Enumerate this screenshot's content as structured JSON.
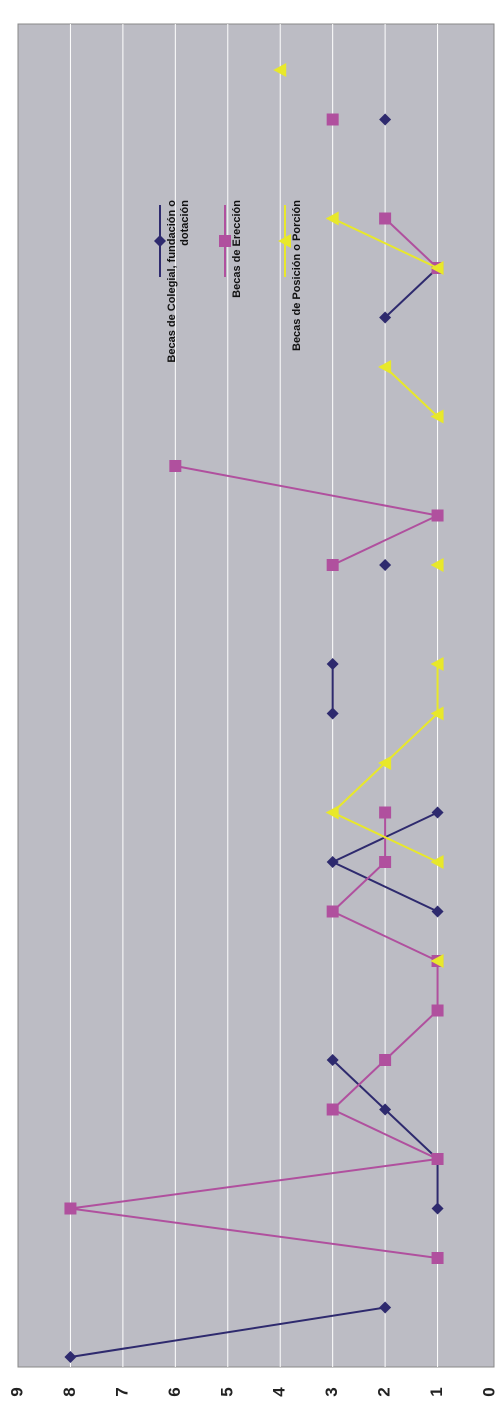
{
  "chart_data": {
    "type": "line",
    "orientation": "rotated-90",
    "title": "",
    "xlabel": "",
    "ylabel": "",
    "ylim": [
      0,
      9
    ],
    "y_ticks": [
      "0",
      "1",
      "2",
      "3",
      "4",
      "5",
      "6",
      "7",
      "8",
      "9"
    ],
    "grid": true,
    "legend_position": "top",
    "x_count": 27,
    "series": [
      {
        "name": "Becas de Colegial, fundación o dotación",
        "color": "#2e2a6e",
        "marker": "diamond",
        "values": [
          8,
          2,
          null,
          1,
          1,
          2,
          3,
          null,
          null,
          1,
          3,
          1,
          null,
          3,
          3,
          null,
          2,
          null,
          null,
          null,
          null,
          2,
          1,
          null,
          null,
          2,
          null
        ]
      },
      {
        "name": "Becas de Erección",
        "color": "#b0509e",
        "marker": "square",
        "values": [
          null,
          null,
          1,
          8,
          1,
          3,
          2,
          1,
          1,
          3,
          2,
          2,
          null,
          null,
          null,
          null,
          3,
          1,
          6,
          null,
          null,
          null,
          1,
          2,
          null,
          3,
          null
        ]
      },
      {
        "name": "Becas de Posición o Porción",
        "color": "#e8e82a",
        "marker": "triangle",
        "values": [
          null,
          null,
          null,
          null,
          null,
          null,
          null,
          null,
          1,
          null,
          1,
          3,
          2,
          1,
          1,
          null,
          1,
          null,
          null,
          1,
          2,
          null,
          1,
          3,
          null,
          null,
          4
        ]
      }
    ]
  }
}
